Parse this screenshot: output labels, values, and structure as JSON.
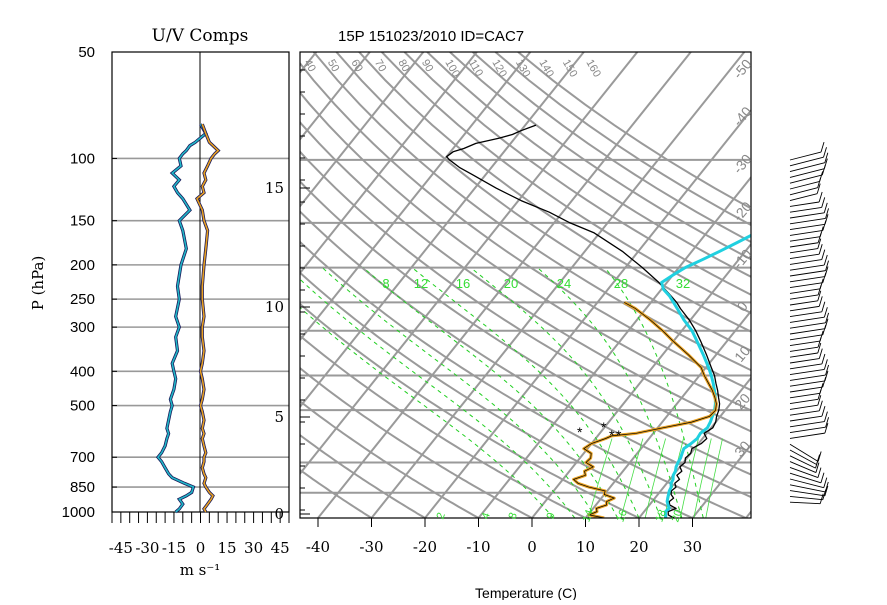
{
  "chart_data": [
    {
      "type": "line",
      "title": "U/V Comps",
      "ylabel": "P (hPa)",
      "xlabel": "m s⁻¹",
      "y_scale": "log",
      "y_ticks": [
        50,
        100,
        150,
        200,
        250,
        300,
        400,
        500,
        700,
        850,
        1000
      ],
      "x_ticks": [
        "-45",
        "-30",
        "-15",
        "0",
        "15",
        "30",
        "45"
      ],
      "xlim": [
        -50,
        50
      ],
      "ylim": [
        1000,
        50
      ],
      "series": [
        {
          "name": "",
          "color": "#20b8c8",
          "p": [
            1000,
            980,
            950,
            920,
            900,
            880,
            850,
            830,
            800,
            780,
            750,
            720,
            700,
            680,
            650,
            620,
            600,
            580,
            550,
            520,
            500,
            480,
            450,
            420,
            400,
            380,
            350,
            320,
            300,
            280,
            250,
            230,
            200,
            180,
            160,
            150,
            140,
            130,
            125,
            120,
            115,
            110,
            105,
            100,
            97,
            95,
            92,
            90,
            85,
            80
          ],
          "values": [
            -14,
            -12,
            -10,
            -12,
            -8,
            -5,
            -4,
            -9,
            -16,
            -18,
            -20,
            -22,
            -24,
            -22,
            -20,
            -19,
            -18,
            -19,
            -18,
            -17,
            -16,
            -17,
            -15,
            -14,
            -15,
            -16,
            -13,
            -14,
            -12,
            -14,
            -12,
            -13,
            -11,
            -8,
            -10,
            -12,
            -6,
            -10,
            -13,
            -15,
            -12,
            -16,
            -11,
            -12,
            -10,
            -8,
            -6,
            -3,
            3,
            0
          ]
        },
        {
          "name": "",
          "color": "#e8a020",
          "p": [
            1000,
            980,
            950,
            920,
            900,
            880,
            850,
            830,
            800,
            780,
            750,
            720,
            700,
            680,
            650,
            620,
            600,
            580,
            550,
            520,
            500,
            480,
            450,
            420,
            400,
            380,
            350,
            320,
            300,
            280,
            250,
            230,
            200,
            180,
            160,
            150,
            140,
            130,
            125,
            120,
            115,
            110,
            105,
            100,
            97,
            95,
            92,
            90,
            85,
            80
          ],
          "values": [
            3,
            2,
            4,
            6,
            7,
            5,
            3,
            2,
            3,
            2,
            1,
            2,
            2,
            3,
            2,
            1,
            2,
            1,
            2,
            1,
            0,
            1,
            2,
            1,
            0,
            1,
            2,
            1,
            1,
            2,
            1,
            1,
            2,
            3,
            4,
            2,
            1,
            -2,
            2,
            1,
            3,
            2,
            4,
            6,
            8,
            10,
            7,
            5,
            3,
            1
          ]
        }
      ]
    },
    {
      "type": "line",
      "title": "15P 151023/2010 ID=CAC7",
      "xlabel": "Temperature (C)",
      "y_scale": "log",
      "x_ticks": [
        "-40",
        "-30",
        "-20",
        "-10",
        "0",
        "10",
        "20",
        "30"
      ],
      "xlim": [
        -43,
        40
      ],
      "ylim": [
        1000,
        50
      ],
      "height_ticks": [
        "0",
        "5",
        "10",
        "15"
      ],
      "isotherm_labels": [
        "-50",
        "-40",
        "-30",
        "-20",
        "-10",
        "0",
        "10",
        "20",
        "30"
      ],
      "theta_labels": [
        "40",
        "50",
        "60",
        "70",
        "80",
        "90",
        "100",
        "110",
        "120",
        "130",
        "140",
        "150",
        "160"
      ],
      "mixing_ratio_labels": [
        "8",
        "12",
        "16",
        "20",
        "24",
        "28",
        "32"
      ],
      "bottom_labels": [
        "2",
        "4",
        "8",
        "9",
        "14",
        "16",
        "18",
        "20"
      ],
      "lcl_label": "*",
      "series": [
        {
          "name": "",
          "color": "#000000",
          "p": [
            1000,
            980,
            960,
            940,
            920,
            900,
            880,
            860,
            840,
            820,
            800,
            780,
            760,
            740,
            720,
            700,
            680,
            660,
            640,
            620,
            600,
            580,
            560,
            540,
            520,
            500,
            480,
            460,
            440,
            420,
            400,
            380,
            350,
            320,
            300,
            280,
            260,
            250,
            240,
            220,
            200,
            180,
            160,
            150,
            140,
            130,
            120,
            110,
            105,
            100,
            98,
            95,
            93,
            90,
            87,
            85,
            83,
            80
          ],
          "values": [
            26.5,
            25,
            24.5,
            25.5,
            23.8,
            23.2,
            23.5,
            22.5,
            22.0,
            22.3,
            21.5,
            21.8,
            20.7,
            21.0,
            20.0,
            20.3,
            19.7,
            20.0,
            19.5,
            20.5,
            20.8,
            19.5,
            20.3,
            20.0,
            19.3,
            18.8,
            18.0,
            16.8,
            15.6,
            14.2,
            12.8,
            11.0,
            8.2,
            5.0,
            2.6,
            -0.2,
            -3.6,
            -5.2,
            -7.2,
            -11.5,
            -16.8,
            -23.0,
            -31.0,
            -37.0,
            -42.5,
            -49.5,
            -56.0,
            -62.5,
            -66.0,
            -69.0,
            -70.0,
            -69.5,
            -68.0,
            -66.5,
            -63.0,
            -61.0,
            -60.0,
            -58.0
          ]
        },
        {
          "name": "",
          "color": "#20d0e0",
          "p": [
            1000,
            980,
            960,
            940,
            920,
            900,
            880,
            860,
            840,
            820,
            800,
            780,
            760,
            740,
            720,
            700,
            680,
            660,
            640,
            620,
            600,
            580,
            560,
            540,
            520,
            500,
            480,
            460,
            440,
            420,
            400,
            380,
            350,
            320,
            300,
            280,
            260,
            250,
            240,
            230,
            220,
            210,
            200,
            190,
            180,
            170,
            160,
            150,
            140,
            130,
            120,
            110,
            100,
            90,
            80
          ],
          "values": [
            25.0,
            24.5,
            24.0,
            24.2,
            23.5,
            22.8,
            22.4,
            22.0,
            21.6,
            21.4,
            20.8,
            20.6,
            20.0,
            19.8,
            19.3,
            19.0,
            18.8,
            18.4,
            18.0,
            18.6,
            19.0,
            18.8,
            19.3,
            19.0,
            18.5,
            18.0,
            17.2,
            16.2,
            15.0,
            13.7,
            12.2,
            10.5,
            7.6,
            4.3,
            1.9,
            -1.2,
            -4.2,
            -5.8,
            -7.5,
            -9.6,
            -11.0,
            -10.0,
            -8.8,
            -6.8,
            -4.8,
            -2.8,
            -0.8,
            1.2,
            3.4,
            5.6,
            7.9,
            10.4,
            13.0,
            15.6,
            18.4
          ]
        },
        {
          "name": "",
          "color": "#e8a020",
          "p": [
            1000,
            980,
            960,
            940,
            920,
            900,
            880,
            860,
            840,
            820,
            800,
            780,
            760,
            740,
            720,
            700,
            680,
            660,
            640,
            620,
            600,
            590,
            580,
            560,
            540,
            520,
            500,
            480,
            460,
            440,
            420,
            400,
            380,
            350,
            320,
            300,
            280,
            260,
            250
          ],
          "values": [
            13.5,
            10.2,
            11.2,
            10.6,
            12.0,
            11.5,
            12.4,
            10.0,
            9.6,
            6.0,
            3.4,
            2.0,
            3.6,
            2.8,
            3.8,
            1.8,
            2.0,
            1.4,
            -0.7,
            0.0,
            1.9,
            2.6,
            6.8,
            11.0,
            15.5,
            18.0,
            18.2,
            17.4,
            16.1,
            14.6,
            12.8,
            10.9,
            9.1,
            4.8,
            -0.2,
            -3.6,
            -7.5,
            -12.0,
            -15.0
          ]
        }
      ]
    }
  ]
}
